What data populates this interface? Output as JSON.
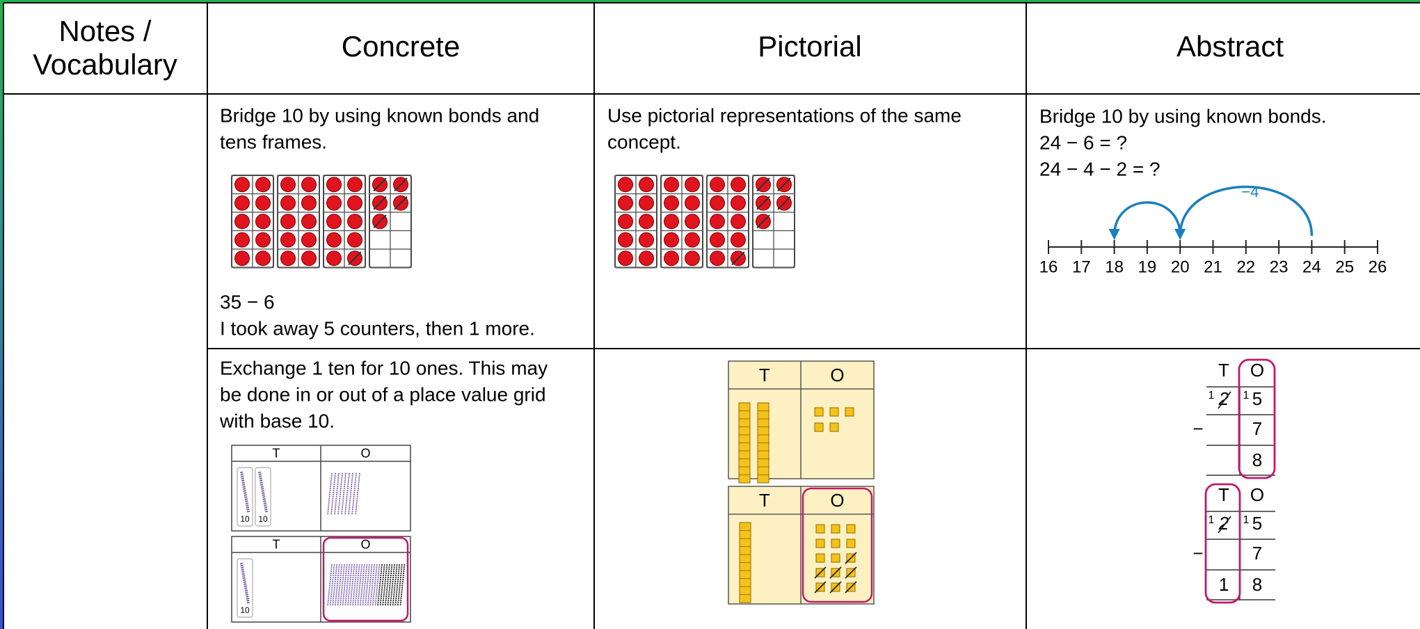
{
  "table": {
    "headers": [
      "Notes / Vocabulary",
      "Concrete",
      "Pictorial",
      "Abstract"
    ],
    "rows": [
      {
        "concrete": {
          "lines": [
            "Bridge 10 by using known bonds and",
            "tens frames."
          ],
          "caption": [
            "35 − 6",
            "I took away 5 counters, then 1 more."
          ]
        },
        "pictorial": {
          "lines": [
            "Use pictorial representations of the same",
            "concept."
          ]
        },
        "abstract": {
          "lines": [
            "Bridge 10 by using known bonds.",
            "24 − 6 = ?",
            "24 − 4 − 2 = ?"
          ],
          "number_line": {
            "labels": [
              16,
              17,
              18,
              19,
              20,
              21,
              22,
              23,
              24,
              25,
              26
            ],
            "jump_label": "−4"
          }
        }
      },
      {
        "concrete": {
          "lines": [
            "Exchange 1 ten for 10 ones. This may",
            "be done in or out of a place value grid",
            "with base 10."
          ],
          "grids": [
            {
              "headers": [
                "T",
                "O"
              ],
              "rod_labels": [
                10,
                10
              ]
            },
            {
              "headers": [
                "T",
                "O"
              ],
              "rod_labels": [
                10
              ]
            }
          ]
        },
        "pictorial": {
          "grids": [
            {
              "headers": [
                "T",
                "O"
              ]
            },
            {
              "headers": [
                "T",
                "O"
              ]
            }
          ]
        },
        "abstract": {
          "sums": [
            {
              "headers": [
                "T",
                "O"
              ],
              "carries": [
                1,
                1
              ],
              "tens": 2,
              "ones": 5,
              "operator": "−",
              "subtrahend": 7,
              "answer_ones": 8
            },
            {
              "headers": [
                "T",
                "O"
              ],
              "carries": [
                1,
                1
              ],
              "tens": 2,
              "ones": 5,
              "operator": "−",
              "subtrahend": 7,
              "answer_tens": 1,
              "answer_ones": 8
            }
          ]
        }
      }
    ]
  }
}
